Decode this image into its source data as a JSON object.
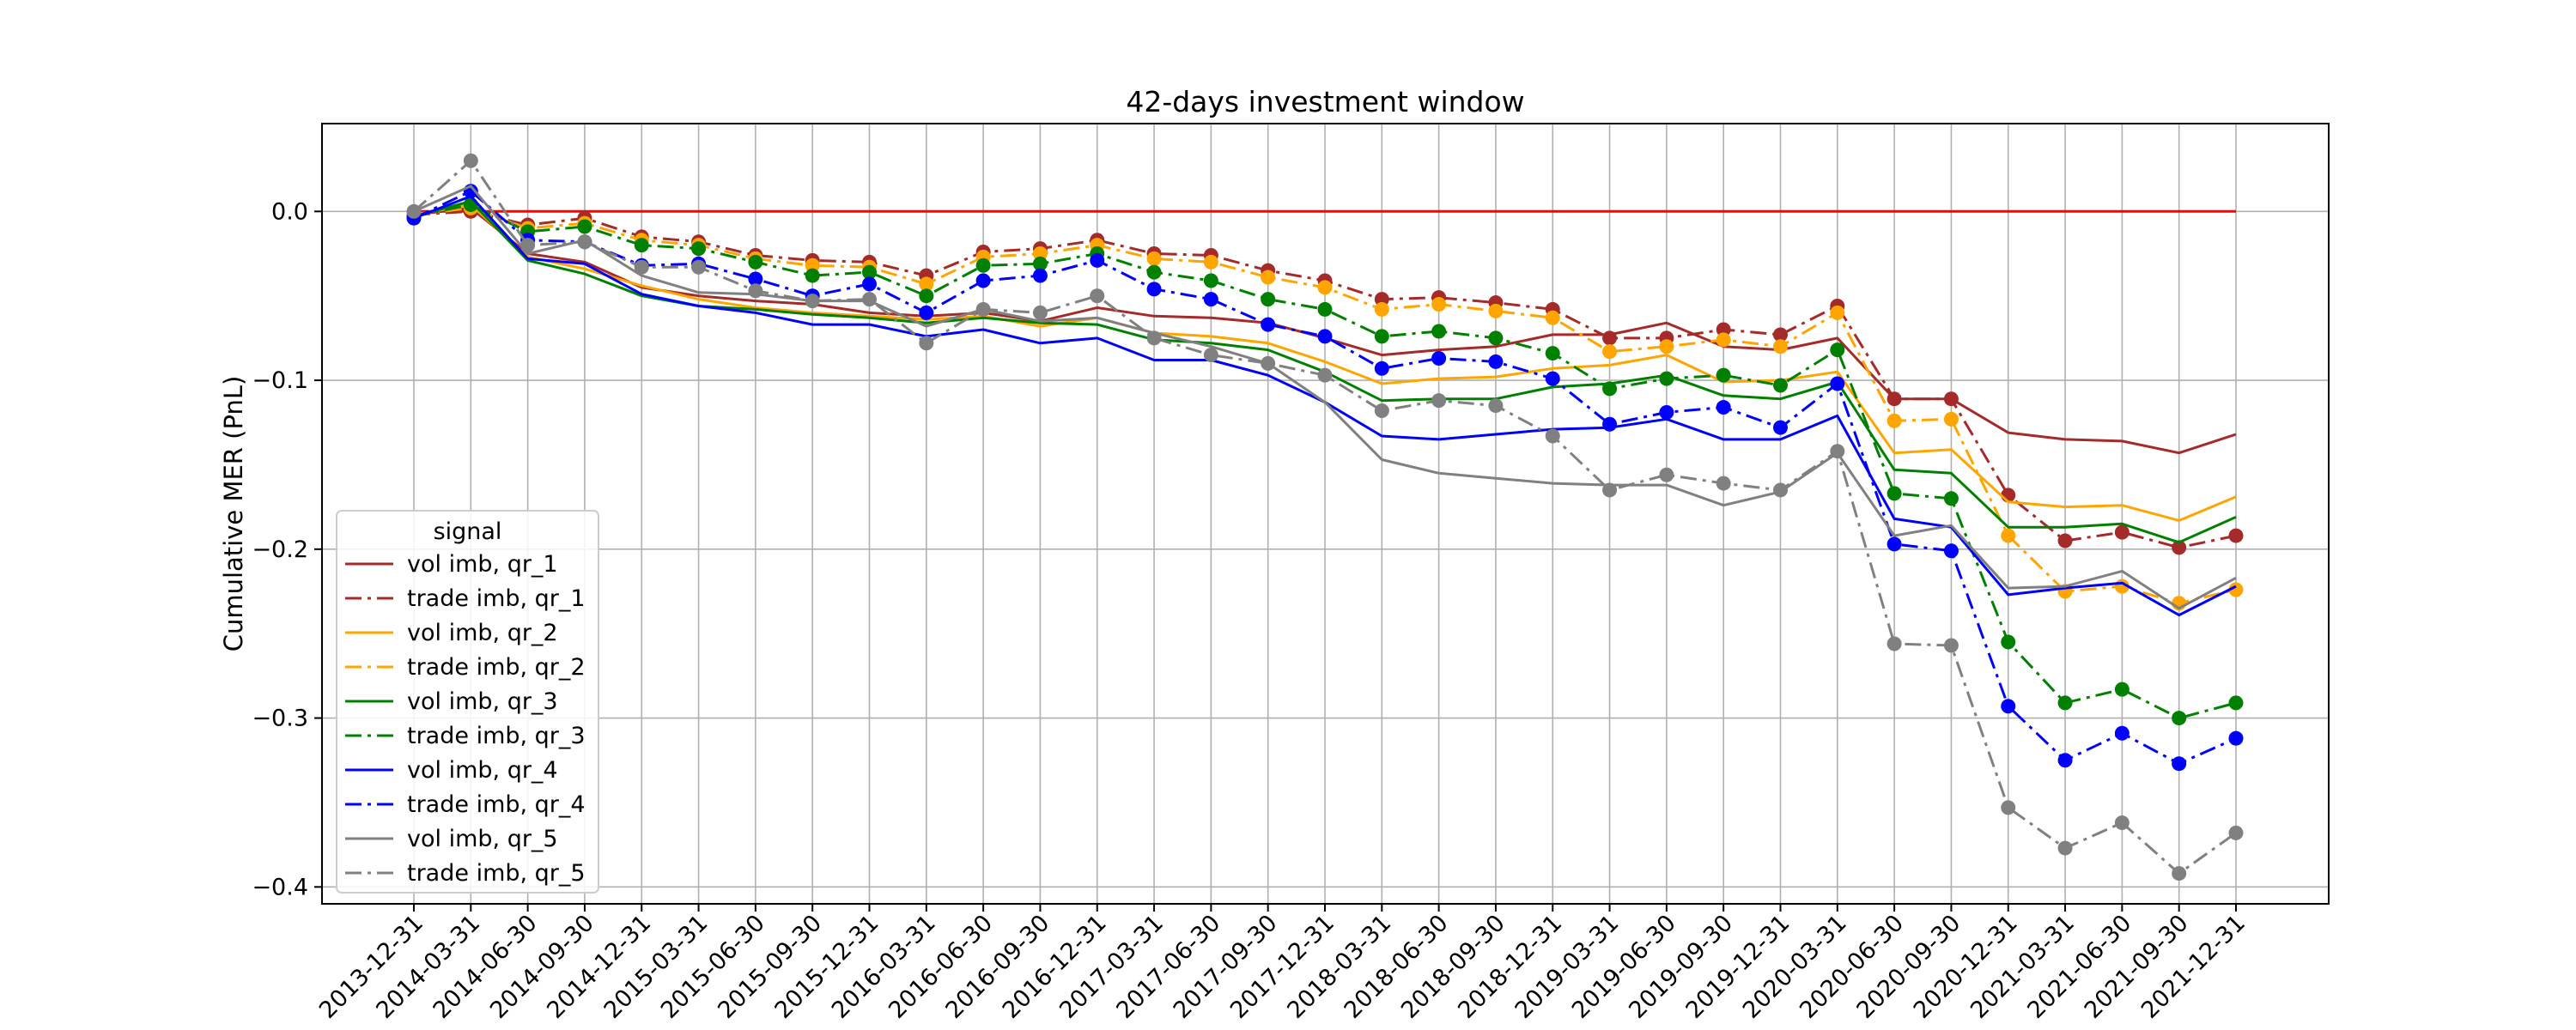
{
  "chart_data": {
    "type": "line",
    "title": "42-days investment window",
    "xlabel": "",
    "ylabel": "Cumulative MER (PnL)",
    "ylim": [
      -0.41,
      0.052
    ],
    "yticks": [
      0.0,
      -0.1,
      -0.2,
      -0.3,
      -0.4
    ],
    "ytick_labels": [
      "0.0",
      "−0.1",
      "−0.2",
      "−0.3",
      "−0.4"
    ],
    "grid": true,
    "legend_title": "signal",
    "legend_position": "lower-left",
    "x": [
      "2013-12-31",
      "2014-03-31",
      "2014-06-30",
      "2014-09-30",
      "2014-12-31",
      "2015-03-31",
      "2015-06-30",
      "2015-09-30",
      "2015-12-31",
      "2016-03-31",
      "2016-06-30",
      "2016-09-30",
      "2016-12-31",
      "2017-03-31",
      "2017-06-30",
      "2017-09-30",
      "2017-12-31",
      "2018-03-31",
      "2018-06-30",
      "2018-09-30",
      "2018-12-31",
      "2019-03-31",
      "2019-06-30",
      "2019-09-30",
      "2019-12-31",
      "2020-03-31",
      "2020-06-30",
      "2020-09-30",
      "2020-12-31",
      "2021-03-31",
      "2021-06-30",
      "2021-09-30",
      "2021-12-31"
    ],
    "reference_line": {
      "y": 0.0,
      "color": "#ff0000"
    },
    "series": [
      {
        "name": "vol imb, qr_1",
        "color": "#a52a2a",
        "dash": "solid",
        "markers": false,
        "values": [
          -0.002,
          0.002,
          -0.025,
          -0.03,
          -0.045,
          -0.05,
          -0.053,
          -0.055,
          -0.06,
          -0.062,
          -0.06,
          -0.065,
          -0.057,
          -0.062,
          -0.063,
          -0.066,
          -0.075,
          -0.085,
          -0.082,
          -0.08,
          -0.073,
          -0.073,
          -0.066,
          -0.08,
          -0.082,
          -0.075,
          -0.111,
          -0.111,
          -0.131,
          -0.135,
          -0.136,
          -0.143,
          -0.132
        ]
      },
      {
        "name": "trade imb, qr_1",
        "color": "#a52a2a",
        "dash": "dashdot",
        "markers": true,
        "values": [
          -0.002,
          0.0,
          -0.008,
          -0.004,
          -0.015,
          -0.018,
          -0.026,
          -0.029,
          -0.03,
          -0.038,
          -0.024,
          -0.022,
          -0.017,
          -0.025,
          -0.026,
          -0.035,
          -0.041,
          -0.052,
          -0.051,
          -0.054,
          -0.058,
          -0.075,
          -0.075,
          -0.07,
          -0.073,
          -0.056,
          -0.111,
          -0.111,
          -0.168,
          -0.195,
          -0.19,
          -0.199,
          -0.192
        ]
      },
      {
        "name": "vol imb, qr_2",
        "color": "#ffa500",
        "dash": "solid",
        "markers": false,
        "values": [
          -0.002,
          0.004,
          -0.027,
          -0.034,
          -0.044,
          -0.052,
          -0.057,
          -0.06,
          -0.062,
          -0.064,
          -0.062,
          -0.068,
          -0.063,
          -0.072,
          -0.074,
          -0.078,
          -0.089,
          -0.102,
          -0.099,
          -0.098,
          -0.093,
          -0.091,
          -0.085,
          -0.101,
          -0.1,
          -0.095,
          -0.143,
          -0.141,
          -0.172,
          -0.175,
          -0.174,
          -0.183,
          -0.169
        ]
      },
      {
        "name": "trade imb, qr_2",
        "color": "#ffa500",
        "dash": "dashdot",
        "markers": true,
        "values": [
          -0.002,
          0.002,
          -0.01,
          -0.007,
          -0.017,
          -0.02,
          -0.028,
          -0.032,
          -0.033,
          -0.043,
          -0.027,
          -0.025,
          -0.02,
          -0.028,
          -0.03,
          -0.039,
          -0.045,
          -0.058,
          -0.055,
          -0.059,
          -0.063,
          -0.083,
          -0.08,
          -0.076,
          -0.08,
          -0.06,
          -0.124,
          -0.123,
          -0.192,
          -0.225,
          -0.222,
          -0.232,
          -0.224
        ]
      },
      {
        "name": "vol imb, qr_3",
        "color": "#008000",
        "dash": "solid",
        "markers": false,
        "values": [
          -0.003,
          0.006,
          -0.029,
          -0.037,
          -0.05,
          -0.056,
          -0.058,
          -0.061,
          -0.063,
          -0.066,
          -0.063,
          -0.066,
          -0.067,
          -0.076,
          -0.078,
          -0.082,
          -0.095,
          -0.112,
          -0.111,
          -0.111,
          -0.104,
          -0.102,
          -0.097,
          -0.109,
          -0.111,
          -0.101,
          -0.153,
          -0.155,
          -0.187,
          -0.187,
          -0.185,
          -0.196,
          -0.181
        ]
      },
      {
        "name": "trade imb, qr_3",
        "color": "#008000",
        "dash": "dashdot",
        "markers": true,
        "values": [
          -0.003,
          0.004,
          -0.012,
          -0.009,
          -0.02,
          -0.022,
          -0.03,
          -0.038,
          -0.036,
          -0.05,
          -0.032,
          -0.031,
          -0.025,
          -0.036,
          -0.041,
          -0.052,
          -0.058,
          -0.074,
          -0.071,
          -0.075,
          -0.084,
          -0.105,
          -0.099,
          -0.097,
          -0.103,
          -0.082,
          -0.167,
          -0.17,
          -0.255,
          -0.291,
          -0.283,
          -0.3,
          -0.291
        ]
      },
      {
        "name": "vol imb, qr_4",
        "color": "#0000ff",
        "dash": "solid",
        "markers": false,
        "values": [
          -0.004,
          0.009,
          -0.028,
          -0.031,
          -0.049,
          -0.056,
          -0.06,
          -0.067,
          -0.067,
          -0.074,
          -0.07,
          -0.078,
          -0.075,
          -0.088,
          -0.088,
          -0.097,
          -0.113,
          -0.133,
          -0.135,
          -0.132,
          -0.129,
          -0.128,
          -0.123,
          -0.135,
          -0.135,
          -0.121,
          -0.182,
          -0.187,
          -0.227,
          -0.223,
          -0.22,
          -0.239,
          -0.222
        ]
      },
      {
        "name": "trade imb, qr_4",
        "color": "#0000ff",
        "dash": "dashdot",
        "markers": true,
        "values": [
          -0.004,
          0.012,
          -0.017,
          -0.018,
          -0.032,
          -0.031,
          -0.04,
          -0.05,
          -0.043,
          -0.06,
          -0.041,
          -0.038,
          -0.029,
          -0.046,
          -0.052,
          -0.067,
          -0.074,
          -0.093,
          -0.087,
          -0.089,
          -0.099,
          -0.126,
          -0.119,
          -0.116,
          -0.128,
          -0.102,
          -0.197,
          -0.201,
          -0.293,
          -0.325,
          -0.309,
          -0.327,
          -0.312
        ]
      },
      {
        "name": "vol imb, qr_5",
        "color": "#808080",
        "dash": "solid",
        "markers": false,
        "values": [
          0.0,
          0.015,
          -0.025,
          -0.017,
          -0.038,
          -0.048,
          -0.049,
          -0.053,
          -0.053,
          -0.068,
          -0.058,
          -0.065,
          -0.063,
          -0.072,
          -0.08,
          -0.09,
          -0.113,
          -0.147,
          -0.155,
          -0.158,
          -0.161,
          -0.162,
          -0.162,
          -0.174,
          -0.166,
          -0.143,
          -0.192,
          -0.186,
          -0.223,
          -0.222,
          -0.213,
          -0.235,
          -0.217
        ]
      },
      {
        "name": "trade imb, qr_5",
        "color": "#808080",
        "dash": "dashdot",
        "markers": true,
        "values": [
          0.0,
          0.03,
          -0.02,
          -0.018,
          -0.033,
          -0.033,
          -0.047,
          -0.053,
          -0.052,
          -0.078,
          -0.058,
          -0.06,
          -0.05,
          -0.075,
          -0.085,
          -0.09,
          -0.097,
          -0.118,
          -0.112,
          -0.115,
          -0.133,
          -0.165,
          -0.156,
          -0.161,
          -0.165,
          -0.142,
          -0.256,
          -0.257,
          -0.353,
          -0.377,
          -0.362,
          -0.392,
          -0.368
        ]
      }
    ]
  }
}
